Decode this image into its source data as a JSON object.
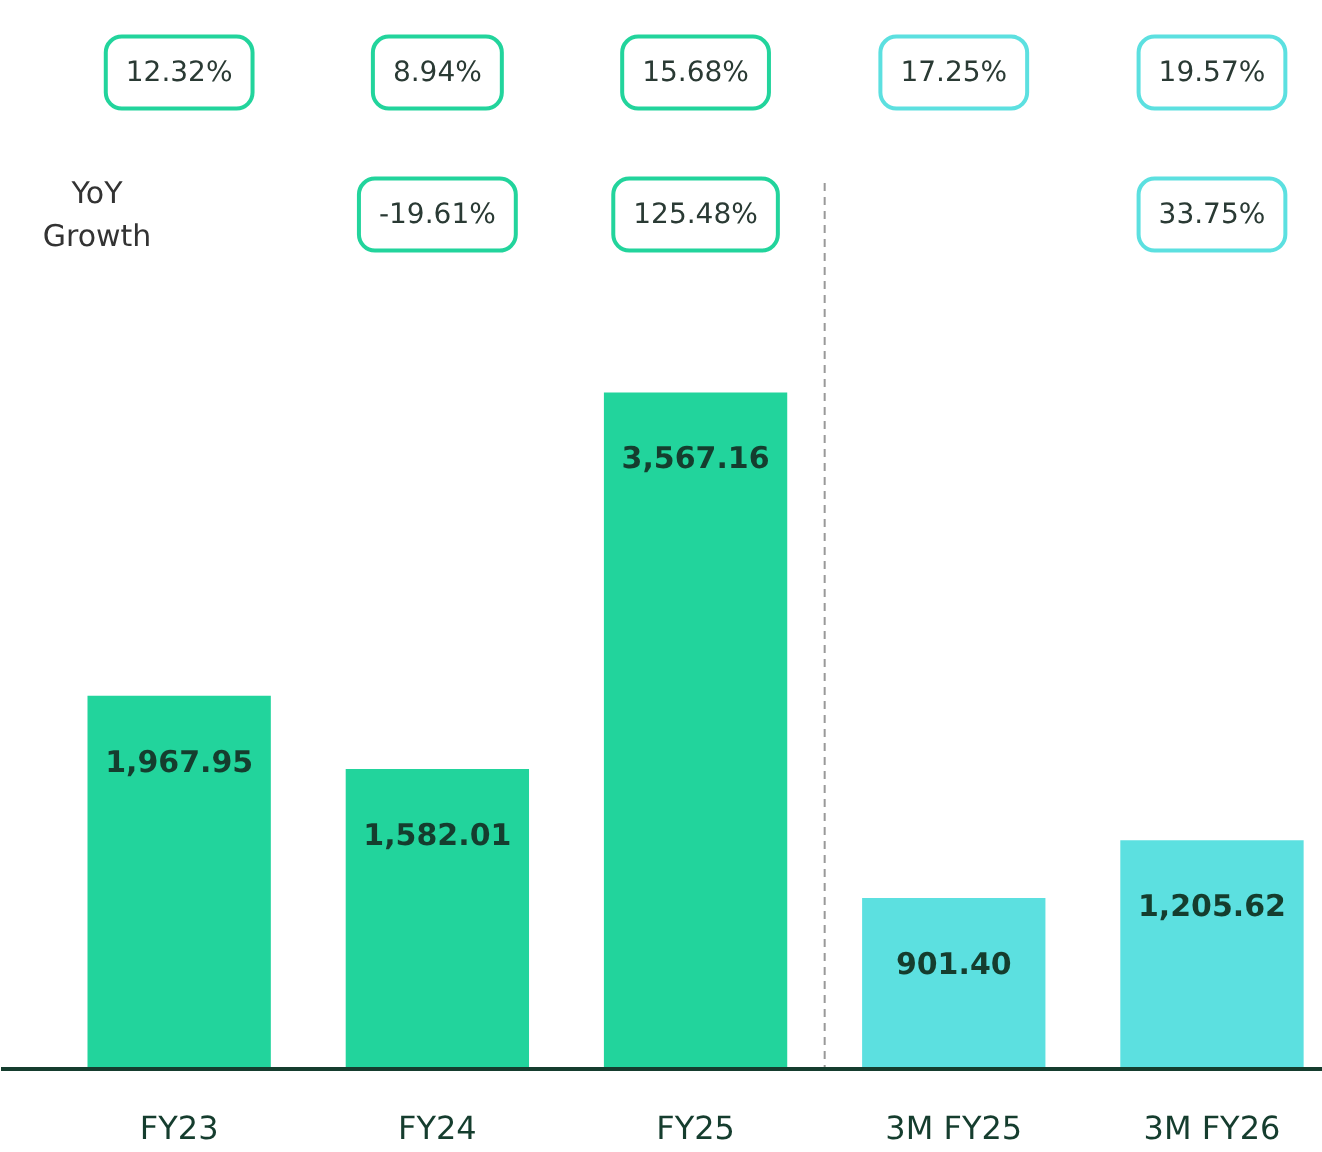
{
  "chart_data": {
    "type": "bar",
    "categories": [
      "FY23",
      "FY24",
      "FY25",
      "3M FY25",
      "3M FY26"
    ],
    "values": [
      1967.95,
      1582.01,
      3567.16,
      901.4,
      1205.62
    ],
    "value_labels": [
      "1,967.95",
      "1,582.01",
      "3,567.16",
      "901.40",
      "1,205.62"
    ],
    "colors": [
      "#22d49c",
      "#22d49c",
      "#22d49c",
      "#5ce0e0",
      "#5ce0e0"
    ],
    "grid": false,
    "annotations": [
      "12.32%",
      "8.94%",
      "15.68%",
      "17.25%",
      "19.57%",
      "YoY\nGrowth",
      "-19.61%",
      "125.48%",
      "33.75%"
    ]
  }
}
